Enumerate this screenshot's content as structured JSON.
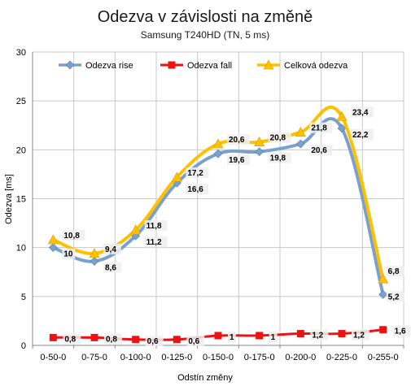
{
  "chart_data": {
    "type": "line",
    "title": "Odezva v závislosti na změně",
    "subtitle": "Samsung T240HD (TN, 5 ms)",
    "xlabel": "Odstín změny",
    "ylabel": "Odezva [ms]",
    "ylim": [
      0,
      30
    ],
    "yticks": [
      "0",
      "5",
      "10",
      "15",
      "20",
      "25",
      "30"
    ],
    "grid": true,
    "legend_position": "top",
    "categories": [
      "0-50-0",
      "0-75-0",
      "0-100-0",
      "0-125-0",
      "0-150-0",
      "0-175-0",
      "0-200-0",
      "0-225-0",
      "0-255-0"
    ],
    "series": [
      {
        "name": "Odezva rise",
        "color": "#7aa0cd",
        "marker": "diamond",
        "values": [
          10,
          8.6,
          11.2,
          16.6,
          19.6,
          19.8,
          20.6,
          22.2,
          5.2
        ],
        "labels": [
          "10",
          "8,6",
          "11,2",
          "16,6",
          "19,6",
          "19,8",
          "20,6",
          "22,2",
          "5,2"
        ]
      },
      {
        "name": "Odezva fall",
        "color": "#ee1111",
        "marker": "square",
        "values": [
          0.8,
          0.8,
          0.6,
          0.6,
          1,
          1,
          1.2,
          1.2,
          1.6
        ],
        "labels": [
          "0,8",
          "0,8",
          "0,6",
          "0,6",
          "1",
          "1",
          "1,2",
          "1,2",
          "1,6"
        ]
      },
      {
        "name": "Celková odezva",
        "color": "#ffc000",
        "marker": "triangle",
        "values": [
          10.8,
          9.4,
          11.8,
          17.2,
          20.6,
          20.8,
          21.8,
          23.4,
          6.8
        ],
        "labels": [
          "10,8",
          "9,4",
          "11,8",
          "17,2",
          "20,6",
          "20,8",
          "21,8",
          "23,4",
          "6,8"
        ]
      }
    ]
  }
}
